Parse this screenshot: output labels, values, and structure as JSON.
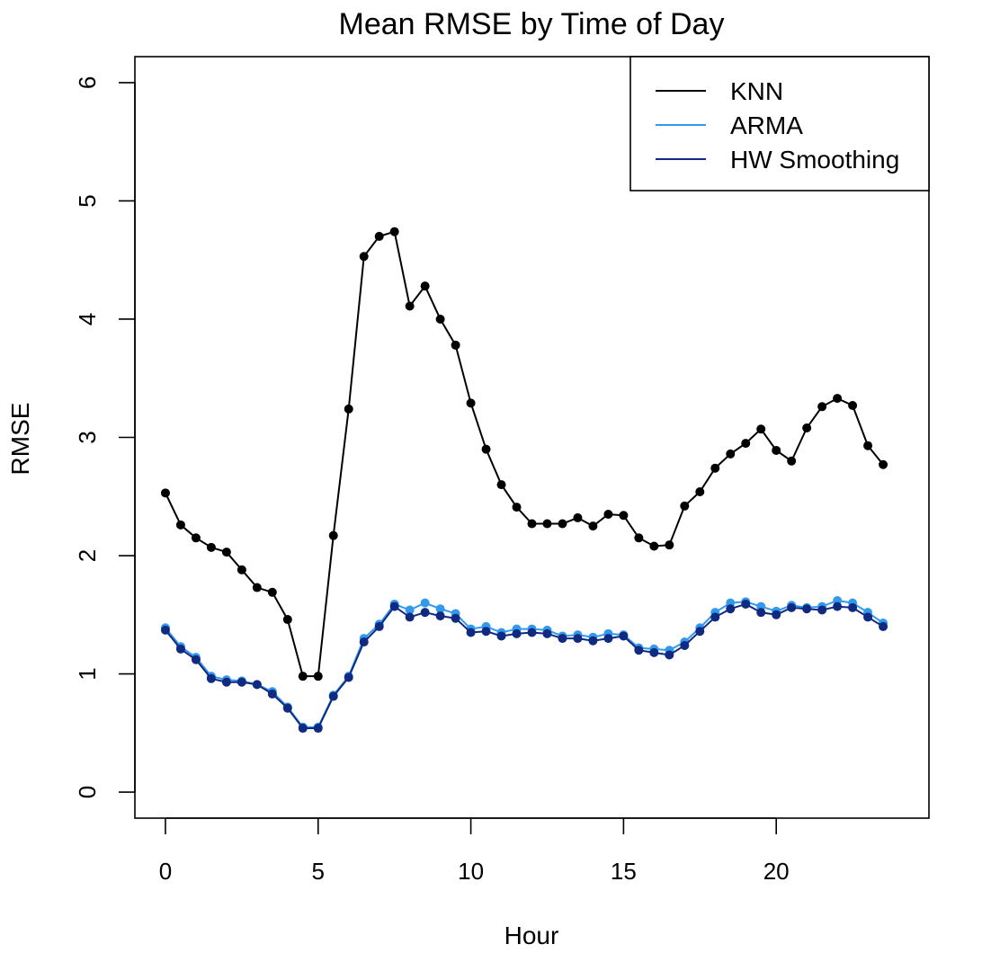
{
  "chart_data": {
    "type": "line",
    "title": "Mean RMSE by Time of Day",
    "xlabel": "Hour",
    "ylabel": "RMSE",
    "xlim": [
      -1,
      25
    ],
    "ylim": [
      -0.22,
      6.22
    ],
    "xticks": [
      0,
      5,
      10,
      15,
      20
    ],
    "yticks": [
      0,
      1,
      2,
      3,
      4,
      5,
      6
    ],
    "grid": false,
    "legend_position": "top-right",
    "x": [
      0,
      0.5,
      1,
      1.5,
      2,
      2.5,
      3,
      3.5,
      4,
      4.5,
      5,
      5.5,
      6,
      6.5,
      7,
      7.5,
      8,
      8.5,
      9,
      9.5,
      10,
      10.5,
      11,
      11.5,
      12,
      12.5,
      13,
      13.5,
      14,
      14.5,
      15,
      15.5,
      16,
      16.5,
      17,
      17.5,
      18,
      18.5,
      19,
      19.5,
      20,
      20.5,
      21,
      21.5,
      22,
      22.5,
      23,
      23.5
    ],
    "series": [
      {
        "name": "KNN",
        "color": "#000000",
        "values": [
          2.53,
          2.26,
          2.15,
          2.07,
          2.03,
          1.88,
          1.73,
          1.69,
          1.46,
          0.98,
          0.98,
          2.17,
          3.24,
          4.53,
          4.7,
          4.74,
          4.11,
          4.28,
          4.0,
          3.78,
          3.29,
          2.9,
          2.6,
          2.41,
          2.27,
          2.27,
          2.27,
          2.32,
          2.25,
          2.35,
          2.34,
          2.15,
          2.08,
          2.09,
          2.42,
          2.54,
          2.74,
          2.86,
          2.95,
          3.07,
          2.89,
          2.8,
          3.08,
          3.26,
          3.33,
          3.27,
          2.93,
          2.77
        ]
      },
      {
        "name": "ARMA",
        "color": "#3399ee",
        "values": [
          1.39,
          1.23,
          1.14,
          0.98,
          0.95,
          0.94,
          0.91,
          0.85,
          0.72,
          0.55,
          0.55,
          0.82,
          0.98,
          1.3,
          1.42,
          1.59,
          1.54,
          1.6,
          1.55,
          1.51,
          1.38,
          1.4,
          1.35,
          1.38,
          1.38,
          1.37,
          1.32,
          1.33,
          1.31,
          1.34,
          1.33,
          1.22,
          1.21,
          1.2,
          1.27,
          1.39,
          1.52,
          1.6,
          1.61,
          1.57,
          1.53,
          1.58,
          1.56,
          1.57,
          1.62,
          1.6,
          1.52,
          1.43
        ]
      },
      {
        "name": "HW Smoothing",
        "color": "#0f2a80",
        "values": [
          1.37,
          1.21,
          1.12,
          0.96,
          0.93,
          0.93,
          0.91,
          0.83,
          0.71,
          0.54,
          0.54,
          0.81,
          0.97,
          1.27,
          1.4,
          1.57,
          1.48,
          1.52,
          1.49,
          1.47,
          1.35,
          1.36,
          1.32,
          1.34,
          1.35,
          1.34,
          1.3,
          1.3,
          1.28,
          1.3,
          1.32,
          1.2,
          1.18,
          1.16,
          1.24,
          1.36,
          1.48,
          1.55,
          1.59,
          1.52,
          1.5,
          1.56,
          1.55,
          1.54,
          1.57,
          1.56,
          1.48,
          1.4
        ]
      }
    ]
  }
}
